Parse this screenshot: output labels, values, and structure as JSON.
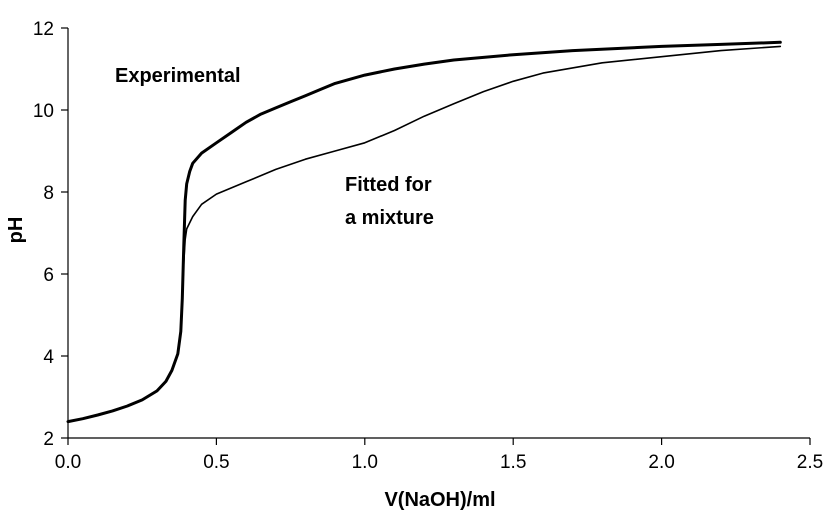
{
  "chart_data": {
    "type": "line",
    "xlabel": "V(NaOH)/ml",
    "ylabel": "pH",
    "xlim": [
      0,
      2.5
    ],
    "ylim": [
      2,
      12
    ],
    "x_ticks": [
      "0.0",
      "0.5",
      "1.0",
      "1.5",
      "2.0",
      "2.5"
    ],
    "y_ticks": [
      "2",
      "4",
      "6",
      "8",
      "10",
      "12"
    ],
    "grid": false,
    "legend": "none",
    "annotations": [
      {
        "text": "Experimental"
      },
      {
        "text": "Fitted for"
      },
      {
        "text": "a mixture"
      }
    ],
    "series": [
      {
        "x": [
          0.0,
          0.05,
          0.1,
          0.15,
          0.2,
          0.25,
          0.3,
          0.33,
          0.35,
          0.37,
          0.38,
          0.385,
          0.39,
          0.395,
          0.4,
          0.41,
          0.42,
          0.45,
          0.5,
          0.55,
          0.6,
          0.65,
          0.7,
          0.75,
          0.8,
          0.85,
          0.9,
          1.0,
          1.1,
          1.2,
          1.3,
          1.5,
          1.7,
          2.0,
          2.2,
          2.4
        ],
        "y": [
          2.4,
          2.47,
          2.56,
          2.66,
          2.78,
          2.93,
          3.15,
          3.38,
          3.65,
          4.05,
          4.6,
          5.4,
          6.7,
          7.8,
          8.2,
          8.5,
          8.7,
          8.95,
          9.2,
          9.45,
          9.7,
          9.9,
          10.05,
          10.2,
          10.35,
          10.5,
          10.65,
          10.85,
          11.0,
          11.12,
          11.22,
          11.35,
          11.45,
          11.55,
          11.6,
          11.65
        ]
      },
      {
        "x": [
          0.0,
          0.05,
          0.1,
          0.15,
          0.2,
          0.25,
          0.3,
          0.33,
          0.35,
          0.37,
          0.38,
          0.385,
          0.39,
          0.395,
          0.4,
          0.42,
          0.45,
          0.5,
          0.6,
          0.7,
          0.8,
          0.9,
          1.0,
          1.1,
          1.2,
          1.3,
          1.4,
          1.5,
          1.6,
          1.8,
          2.0,
          2.2,
          2.4
        ],
        "y": [
          2.4,
          2.47,
          2.56,
          2.66,
          2.78,
          2.93,
          3.15,
          3.38,
          3.65,
          4.05,
          4.6,
          5.4,
          6.3,
          6.85,
          7.1,
          7.4,
          7.7,
          7.95,
          8.25,
          8.55,
          8.8,
          9.0,
          9.2,
          9.5,
          9.85,
          10.15,
          10.45,
          10.7,
          10.9,
          11.15,
          11.3,
          11.45,
          11.55
        ]
      }
    ]
  }
}
